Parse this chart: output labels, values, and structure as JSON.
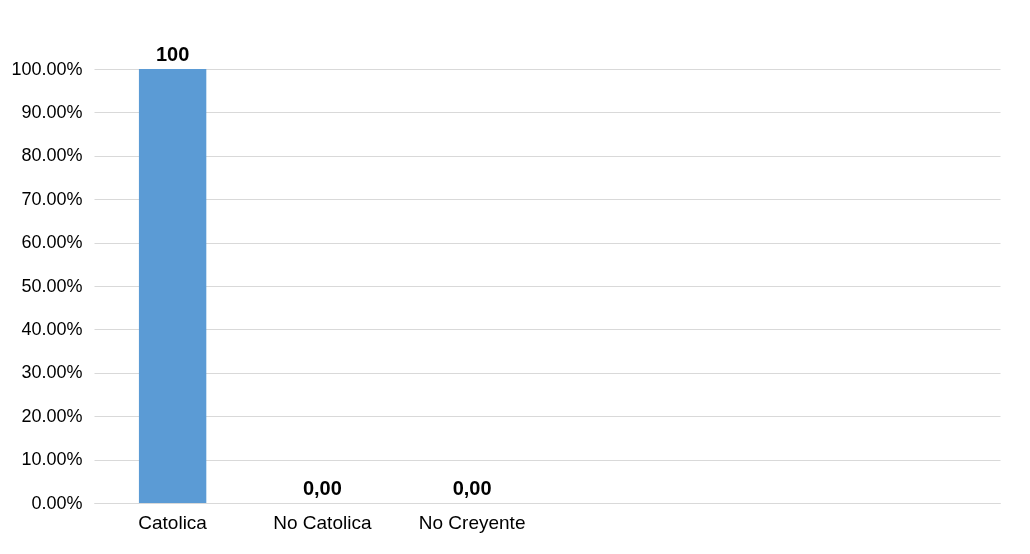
{
  "chart_data": {
    "type": "bar",
    "categories": [
      "Catolica",
      "No Catolica",
      "No Creyente",
      null,
      null,
      null
    ],
    "values": [
      100,
      0,
      0,
      null,
      null,
      null
    ],
    "value_labels": [
      "100",
      "0,00",
      "0,00",
      null,
      null,
      null
    ],
    "color": "#5b9bd5",
    "ylim": [
      0,
      100
    ],
    "yticks": [
      {
        "value": 0,
        "label": "0.00%"
      },
      {
        "value": 10,
        "label": "10.00%"
      },
      {
        "value": 20,
        "label": "20.00%"
      },
      {
        "value": 30,
        "label": "30.00%"
      },
      {
        "value": 40,
        "label": "40.00%"
      },
      {
        "value": 50,
        "label": "50.00%"
      },
      {
        "value": 60,
        "label": "60.00%"
      },
      {
        "value": 70,
        "label": "70.00%"
      },
      {
        "value": 80,
        "label": "80.00%"
      },
      {
        "value": 90,
        "label": "90.00%"
      },
      {
        "value": 100,
        "label": "100.00%"
      }
    ],
    "grid": "y"
  }
}
